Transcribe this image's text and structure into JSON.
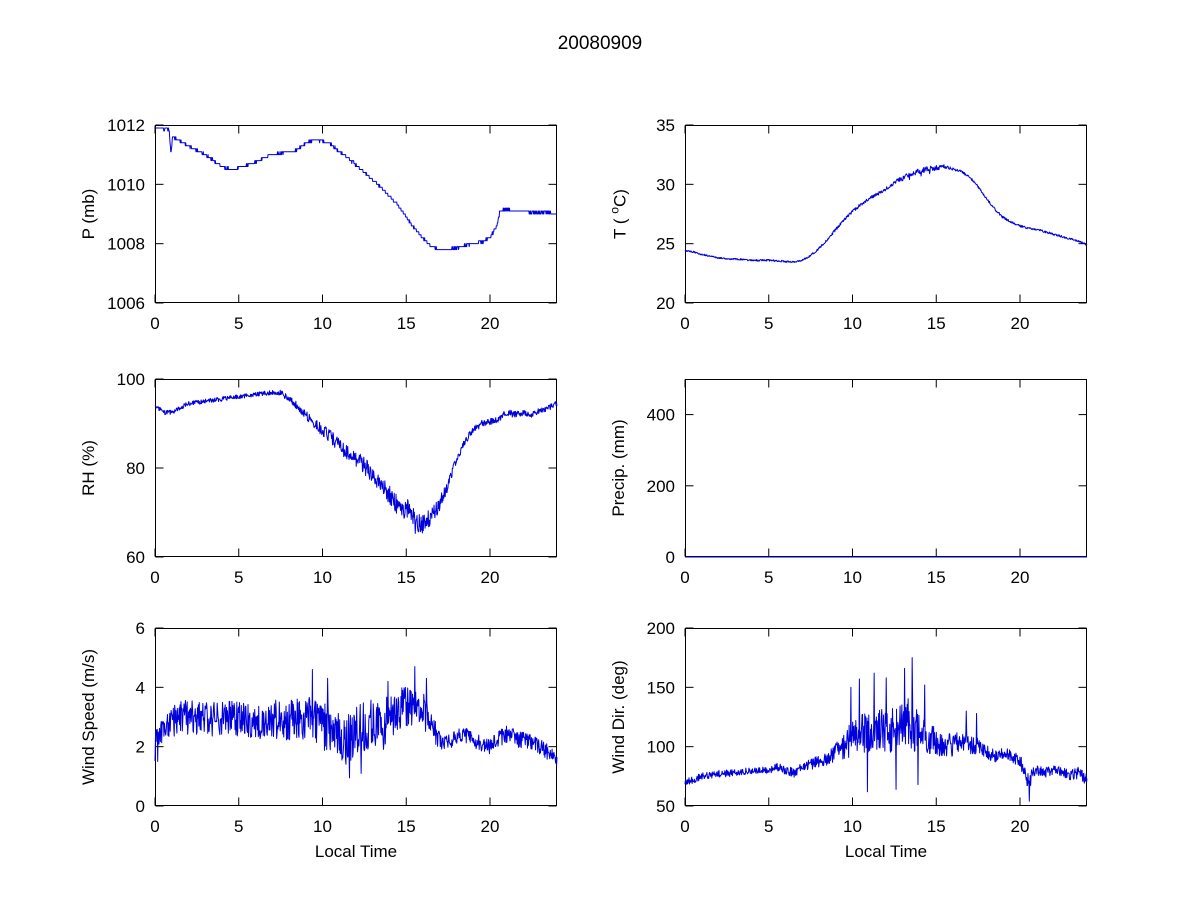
{
  "title": "20080909",
  "style": {
    "line_color": "#0000dd",
    "axis_color": "#000000",
    "background": "#ffffff"
  },
  "chart_data": [
    {
      "type": "line",
      "series_name": "pressure",
      "ylabel": "P (mb)",
      "xlabel": "",
      "xlim": [
        0,
        24
      ],
      "ylim": [
        1006,
        1012
      ],
      "xticks": [
        0,
        5,
        10,
        15,
        20
      ],
      "yticks": [
        1006,
        1008,
        1010,
        1012
      ],
      "grid": false,
      "points": 1100,
      "quantize": 0.1,
      "mean_keypoints": [
        [
          0,
          1011.9
        ],
        [
          0.85,
          1011.85
        ],
        [
          0.95,
          1011.0
        ],
        [
          1.05,
          1011.6
        ],
        [
          1.5,
          1011.45
        ],
        [
          2,
          1011.3
        ],
        [
          2.5,
          1011.15
        ],
        [
          3,
          1011.0
        ],
        [
          3.5,
          1010.8
        ],
        [
          4,
          1010.6
        ],
        [
          4.5,
          1010.5
        ],
        [
          5,
          1010.55
        ],
        [
          5.5,
          1010.65
        ],
        [
          6,
          1010.75
        ],
        [
          6.5,
          1010.9
        ],
        [
          7,
          1011.0
        ],
        [
          7.5,
          1011.05
        ],
        [
          8,
          1011.1
        ],
        [
          8.5,
          1011.15
        ],
        [
          9,
          1011.4
        ],
        [
          9.5,
          1011.5
        ],
        [
          10,
          1011.45
        ],
        [
          10.5,
          1011.35
        ],
        [
          11,
          1011.1
        ],
        [
          11.5,
          1010.9
        ],
        [
          12,
          1010.65
        ],
        [
          12.5,
          1010.4
        ],
        [
          13,
          1010.15
        ],
        [
          13.5,
          1009.9
        ],
        [
          14,
          1009.6
        ],
        [
          14.5,
          1009.3
        ],
        [
          15,
          1008.9
        ],
        [
          15.5,
          1008.5
        ],
        [
          16,
          1008.2
        ],
        [
          16.5,
          1007.9
        ],
        [
          17,
          1007.8
        ],
        [
          17.5,
          1007.8
        ],
        [
          18,
          1007.85
        ],
        [
          18.5,
          1007.95
        ],
        [
          19,
          1008.0
        ],
        [
          19.5,
          1008.05
        ],
        [
          20,
          1008.2
        ],
        [
          20.4,
          1008.6
        ],
        [
          20.6,
          1009.1
        ],
        [
          21,
          1009.15
        ],
        [
          21.5,
          1009.1
        ],
        [
          22,
          1009.1
        ],
        [
          22.5,
          1009.05
        ],
        [
          23,
          1009.05
        ],
        [
          23.5,
          1009.05
        ],
        [
          24,
          1009.0
        ]
      ],
      "noise_amp_keypoints": [
        [
          0,
          0.03
        ],
        [
          24,
          0.03
        ]
      ],
      "spikes": []
    },
    {
      "type": "line",
      "series_name": "temperature",
      "ylabel": "T ( ^oC)",
      "xlabel": "",
      "xlim": [
        0,
        24
      ],
      "ylim": [
        20,
        35
      ],
      "xticks": [
        0,
        5,
        10,
        15,
        20
      ],
      "yticks": [
        20,
        25,
        30,
        35
      ],
      "grid": false,
      "points": 900,
      "mean_keypoints": [
        [
          0,
          24.4
        ],
        [
          0.5,
          24.3
        ],
        [
          1,
          24.1
        ],
        [
          2,
          23.8
        ],
        [
          3,
          23.7
        ],
        [
          4,
          23.6
        ],
        [
          5,
          23.6
        ],
        [
          6,
          23.5
        ],
        [
          6.5,
          23.45
        ],
        [
          7,
          23.6
        ],
        [
          7.5,
          24.0
        ],
        [
          8,
          24.6
        ],
        [
          8.5,
          25.3
        ],
        [
          9,
          26.2
        ],
        [
          9.5,
          27.0
        ],
        [
          10,
          27.7
        ],
        [
          10.5,
          28.3
        ],
        [
          11,
          28.8
        ],
        [
          11.5,
          29.2
        ],
        [
          12,
          29.6
        ],
        [
          12.5,
          30.2
        ],
        [
          13,
          30.5
        ],
        [
          13.5,
          30.9
        ],
        [
          14,
          31.1
        ],
        [
          14.5,
          31.3
        ],
        [
          15,
          31.4
        ],
        [
          15.5,
          31.5
        ],
        [
          16,
          31.3
        ],
        [
          16.5,
          31.1
        ],
        [
          17,
          30.6
        ],
        [
          17.5,
          29.8
        ],
        [
          18,
          28.8
        ],
        [
          18.5,
          27.9
        ],
        [
          19,
          27.2
        ],
        [
          19.5,
          26.8
        ],
        [
          20,
          26.5
        ],
        [
          20.5,
          26.3
        ],
        [
          21,
          26.2
        ],
        [
          21.5,
          26.0
        ],
        [
          22,
          25.8
        ],
        [
          22.5,
          25.6
        ],
        [
          23,
          25.4
        ],
        [
          23.5,
          25.2
        ],
        [
          24,
          24.9
        ]
      ],
      "noise_amp_keypoints": [
        [
          0,
          0.07
        ],
        [
          7,
          0.07
        ],
        [
          9,
          0.12
        ],
        [
          12,
          0.15
        ],
        [
          13,
          0.22
        ],
        [
          15,
          0.22
        ],
        [
          16,
          0.12
        ],
        [
          18,
          0.1
        ],
        [
          24,
          0.08
        ]
      ],
      "spikes": [
        [
          13.4,
          30.4
        ],
        [
          14.1,
          30.7
        ],
        [
          14.6,
          30.9
        ]
      ]
    },
    {
      "type": "line",
      "series_name": "relative_humidity",
      "ylabel": "RH (%)",
      "xlabel": "",
      "xlim": [
        0,
        24
      ],
      "ylim": [
        60,
        100
      ],
      "xticks": [
        0,
        5,
        10,
        15,
        20
      ],
      "yticks": [
        60,
        80,
        100
      ],
      "grid": false,
      "points": 900,
      "mean_keypoints": [
        [
          0,
          94
        ],
        [
          0.5,
          92.5
        ],
        [
          1,
          92.5
        ],
        [
          1.5,
          93.5
        ],
        [
          2,
          94.5
        ],
        [
          3,
          95
        ],
        [
          4,
          95.5
        ],
        [
          5,
          96
        ],
        [
          6,
          96.5
        ],
        [
          7,
          97
        ],
        [
          7.5,
          97
        ],
        [
          8,
          95.5
        ],
        [
          8.5,
          94
        ],
        [
          9,
          92
        ],
        [
          9.5,
          90
        ],
        [
          10,
          88.5
        ],
        [
          10.5,
          87
        ],
        [
          11,
          85
        ],
        [
          11.5,
          83.5
        ],
        [
          12,
          82
        ],
        [
          12.5,
          80.5
        ],
        [
          13,
          78.5
        ],
        [
          13.5,
          76.5
        ],
        [
          14,
          74
        ],
        [
          14.5,
          71.5
        ],
        [
          15,
          70.5
        ],
        [
          15.2,
          71.5
        ],
        [
          15.5,
          68
        ],
        [
          16,
          67.5
        ],
        [
          16.5,
          69
        ],
        [
          17,
          72
        ],
        [
          17.5,
          76
        ],
        [
          18,
          82
        ],
        [
          18.5,
          86
        ],
        [
          19,
          88.5
        ],
        [
          19.5,
          90
        ],
        [
          20,
          90.5
        ],
        [
          20.5,
          91
        ],
        [
          21,
          92.5
        ],
        [
          21.5,
          92
        ],
        [
          22,
          92.5
        ],
        [
          22.5,
          92
        ],
        [
          23,
          93
        ],
        [
          23.5,
          93.5
        ],
        [
          24,
          94.5
        ]
      ],
      "noise_amp_keypoints": [
        [
          0,
          0.5
        ],
        [
          7,
          0.5
        ],
        [
          9,
          1.0
        ],
        [
          11,
          1.6
        ],
        [
          13,
          2.0
        ],
        [
          16,
          2.2
        ],
        [
          17,
          1.6
        ],
        [
          18,
          1.0
        ],
        [
          19,
          0.8
        ],
        [
          24,
          0.6
        ]
      ],
      "spikes": [
        [
          15.1,
          72.5
        ],
        [
          15.55,
          65.3
        ]
      ]
    },
    {
      "type": "line",
      "series_name": "precipitation",
      "ylabel": "Precip. (mm)",
      "xlabel": "",
      "xlim": [
        0,
        24
      ],
      "ylim": [
        0,
        500
      ],
      "xticks": [
        0,
        5,
        10,
        15,
        20
      ],
      "yticks": [
        0,
        200,
        400
      ],
      "grid": false,
      "points": 2,
      "mean_keypoints": [
        [
          0,
          0
        ],
        [
          24,
          0
        ]
      ],
      "noise_amp_keypoints": [
        [
          0,
          0
        ],
        [
          24,
          0
        ]
      ],
      "spikes": []
    },
    {
      "type": "line",
      "series_name": "wind_speed",
      "ylabel": "Wind Speed (m/s)",
      "xlabel": "Local Time",
      "xlim": [
        0,
        24
      ],
      "ylim": [
        0,
        6
      ],
      "xticks": [
        0,
        5,
        10,
        15,
        20
      ],
      "yticks": [
        0,
        2,
        4,
        6
      ],
      "grid": false,
      "points": 900,
      "mean_keypoints": [
        [
          0,
          2.0
        ],
        [
          0.5,
          2.6
        ],
        [
          1,
          2.9
        ],
        [
          2,
          3.0
        ],
        [
          3,
          2.9
        ],
        [
          4,
          3.0
        ],
        [
          5,
          2.9
        ],
        [
          6,
          2.8
        ],
        [
          7,
          2.9
        ],
        [
          8,
          2.9
        ],
        [
          9,
          3.0
        ],
        [
          10,
          2.7
        ],
        [
          11,
          2.4
        ],
        [
          11.5,
          2.2
        ],
        [
          12,
          2.6
        ],
        [
          13,
          2.8
        ],
        [
          13.5,
          2.6
        ],
        [
          14,
          3.0
        ],
        [
          15,
          3.3
        ],
        [
          15.5,
          3.5
        ],
        [
          16,
          3.3
        ],
        [
          16.5,
          2.7
        ],
        [
          17,
          2.2
        ],
        [
          17.5,
          2.1
        ],
        [
          18,
          2.3
        ],
        [
          18.5,
          2.4
        ],
        [
          19,
          2.2
        ],
        [
          19.5,
          2.1
        ],
        [
          20,
          2.0
        ],
        [
          20.5,
          2.3
        ],
        [
          21,
          2.4
        ],
        [
          21.5,
          2.3
        ],
        [
          22,
          2.2
        ],
        [
          22.5,
          2.1
        ],
        [
          23,
          2.0
        ],
        [
          23.5,
          1.8
        ],
        [
          24,
          1.5
        ]
      ],
      "noise_amp_keypoints": [
        [
          0,
          0.5
        ],
        [
          1,
          0.6
        ],
        [
          5,
          0.6
        ],
        [
          10,
          0.8
        ],
        [
          12,
          0.9
        ],
        [
          14,
          0.8
        ],
        [
          16,
          0.7
        ],
        [
          17,
          0.3
        ],
        [
          19,
          0.25
        ],
        [
          21,
          0.3
        ],
        [
          24,
          0.25
        ]
      ],
      "spikes": [
        [
          0.15,
          1.5
        ],
        [
          9.4,
          4.6
        ],
        [
          10.3,
          4.3
        ],
        [
          11.6,
          0.95
        ],
        [
          12.3,
          1.1
        ],
        [
          13.9,
          4.2
        ],
        [
          15.5,
          4.7
        ],
        [
          16.2,
          4.3
        ]
      ]
    },
    {
      "type": "line",
      "series_name": "wind_direction",
      "ylabel": "Wind Dir. (deg)",
      "xlabel": "Local Time",
      "xlim": [
        0,
        24
      ],
      "ylim": [
        50,
        200
      ],
      "xticks": [
        0,
        5,
        10,
        15,
        20
      ],
      "yticks": [
        50,
        100,
        150,
        200
      ],
      "grid": false,
      "points": 900,
      "mean_keypoints": [
        [
          0,
          70
        ],
        [
          0.5,
          72
        ],
        [
          1,
          75
        ],
        [
          2,
          77
        ],
        [
          3,
          78
        ],
        [
          4,
          80
        ],
        [
          5,
          80
        ],
        [
          5.5,
          83
        ],
        [
          6,
          80
        ],
        [
          6.5,
          78
        ],
        [
          7,
          82
        ],
        [
          7.5,
          85
        ],
        [
          8,
          88
        ],
        [
          8.5,
          90
        ],
        [
          9,
          95
        ],
        [
          9.5,
          100
        ],
        [
          10,
          108
        ],
        [
          10.5,
          112
        ],
        [
          11,
          110
        ],
        [
          11.5,
          115
        ],
        [
          12,
          112
        ],
        [
          12.5,
          115
        ],
        [
          13,
          118
        ],
        [
          13.5,
          120
        ],
        [
          14,
          112
        ],
        [
          14.5,
          108
        ],
        [
          15,
          105
        ],
        [
          15.5,
          102
        ],
        [
          16,
          100
        ],
        [
          16.5,
          105
        ],
        [
          17,
          102
        ],
        [
          17.5,
          100
        ],
        [
          18,
          95
        ],
        [
          18.5,
          92
        ],
        [
          19,
          95
        ],
        [
          19.5,
          92
        ],
        [
          20,
          88
        ],
        [
          20.5,
          72
        ],
        [
          21,
          80
        ],
        [
          21.5,
          78
        ],
        [
          22,
          80
        ],
        [
          22.5,
          78
        ],
        [
          23,
          76
        ],
        [
          23.5,
          78
        ],
        [
          24,
          72
        ]
      ],
      "noise_amp_keypoints": [
        [
          0,
          3
        ],
        [
          5,
          3
        ],
        [
          8,
          5
        ],
        [
          9,
          8
        ],
        [
          10,
          15
        ],
        [
          11,
          18
        ],
        [
          12,
          18
        ],
        [
          13,
          20
        ],
        [
          13.7,
          25
        ],
        [
          14,
          15
        ],
        [
          15,
          12
        ],
        [
          16,
          10
        ],
        [
          17,
          8
        ],
        [
          18,
          6
        ],
        [
          19,
          5
        ],
        [
          20,
          5
        ],
        [
          20.5,
          8
        ],
        [
          21,
          4
        ],
        [
          24,
          5
        ]
      ],
      "spikes": [
        [
          9.9,
          150
        ],
        [
          10.4,
          157
        ],
        [
          10.9,
          62
        ],
        [
          11.3,
          162
        ],
        [
          12.0,
          158
        ],
        [
          12.6,
          64
        ],
        [
          13.1,
          166
        ],
        [
          13.55,
          175
        ],
        [
          13.9,
          68
        ],
        [
          14.3,
          152
        ],
        [
          16.8,
          130
        ],
        [
          17.4,
          128
        ],
        [
          20.55,
          54
        ]
      ]
    }
  ]
}
